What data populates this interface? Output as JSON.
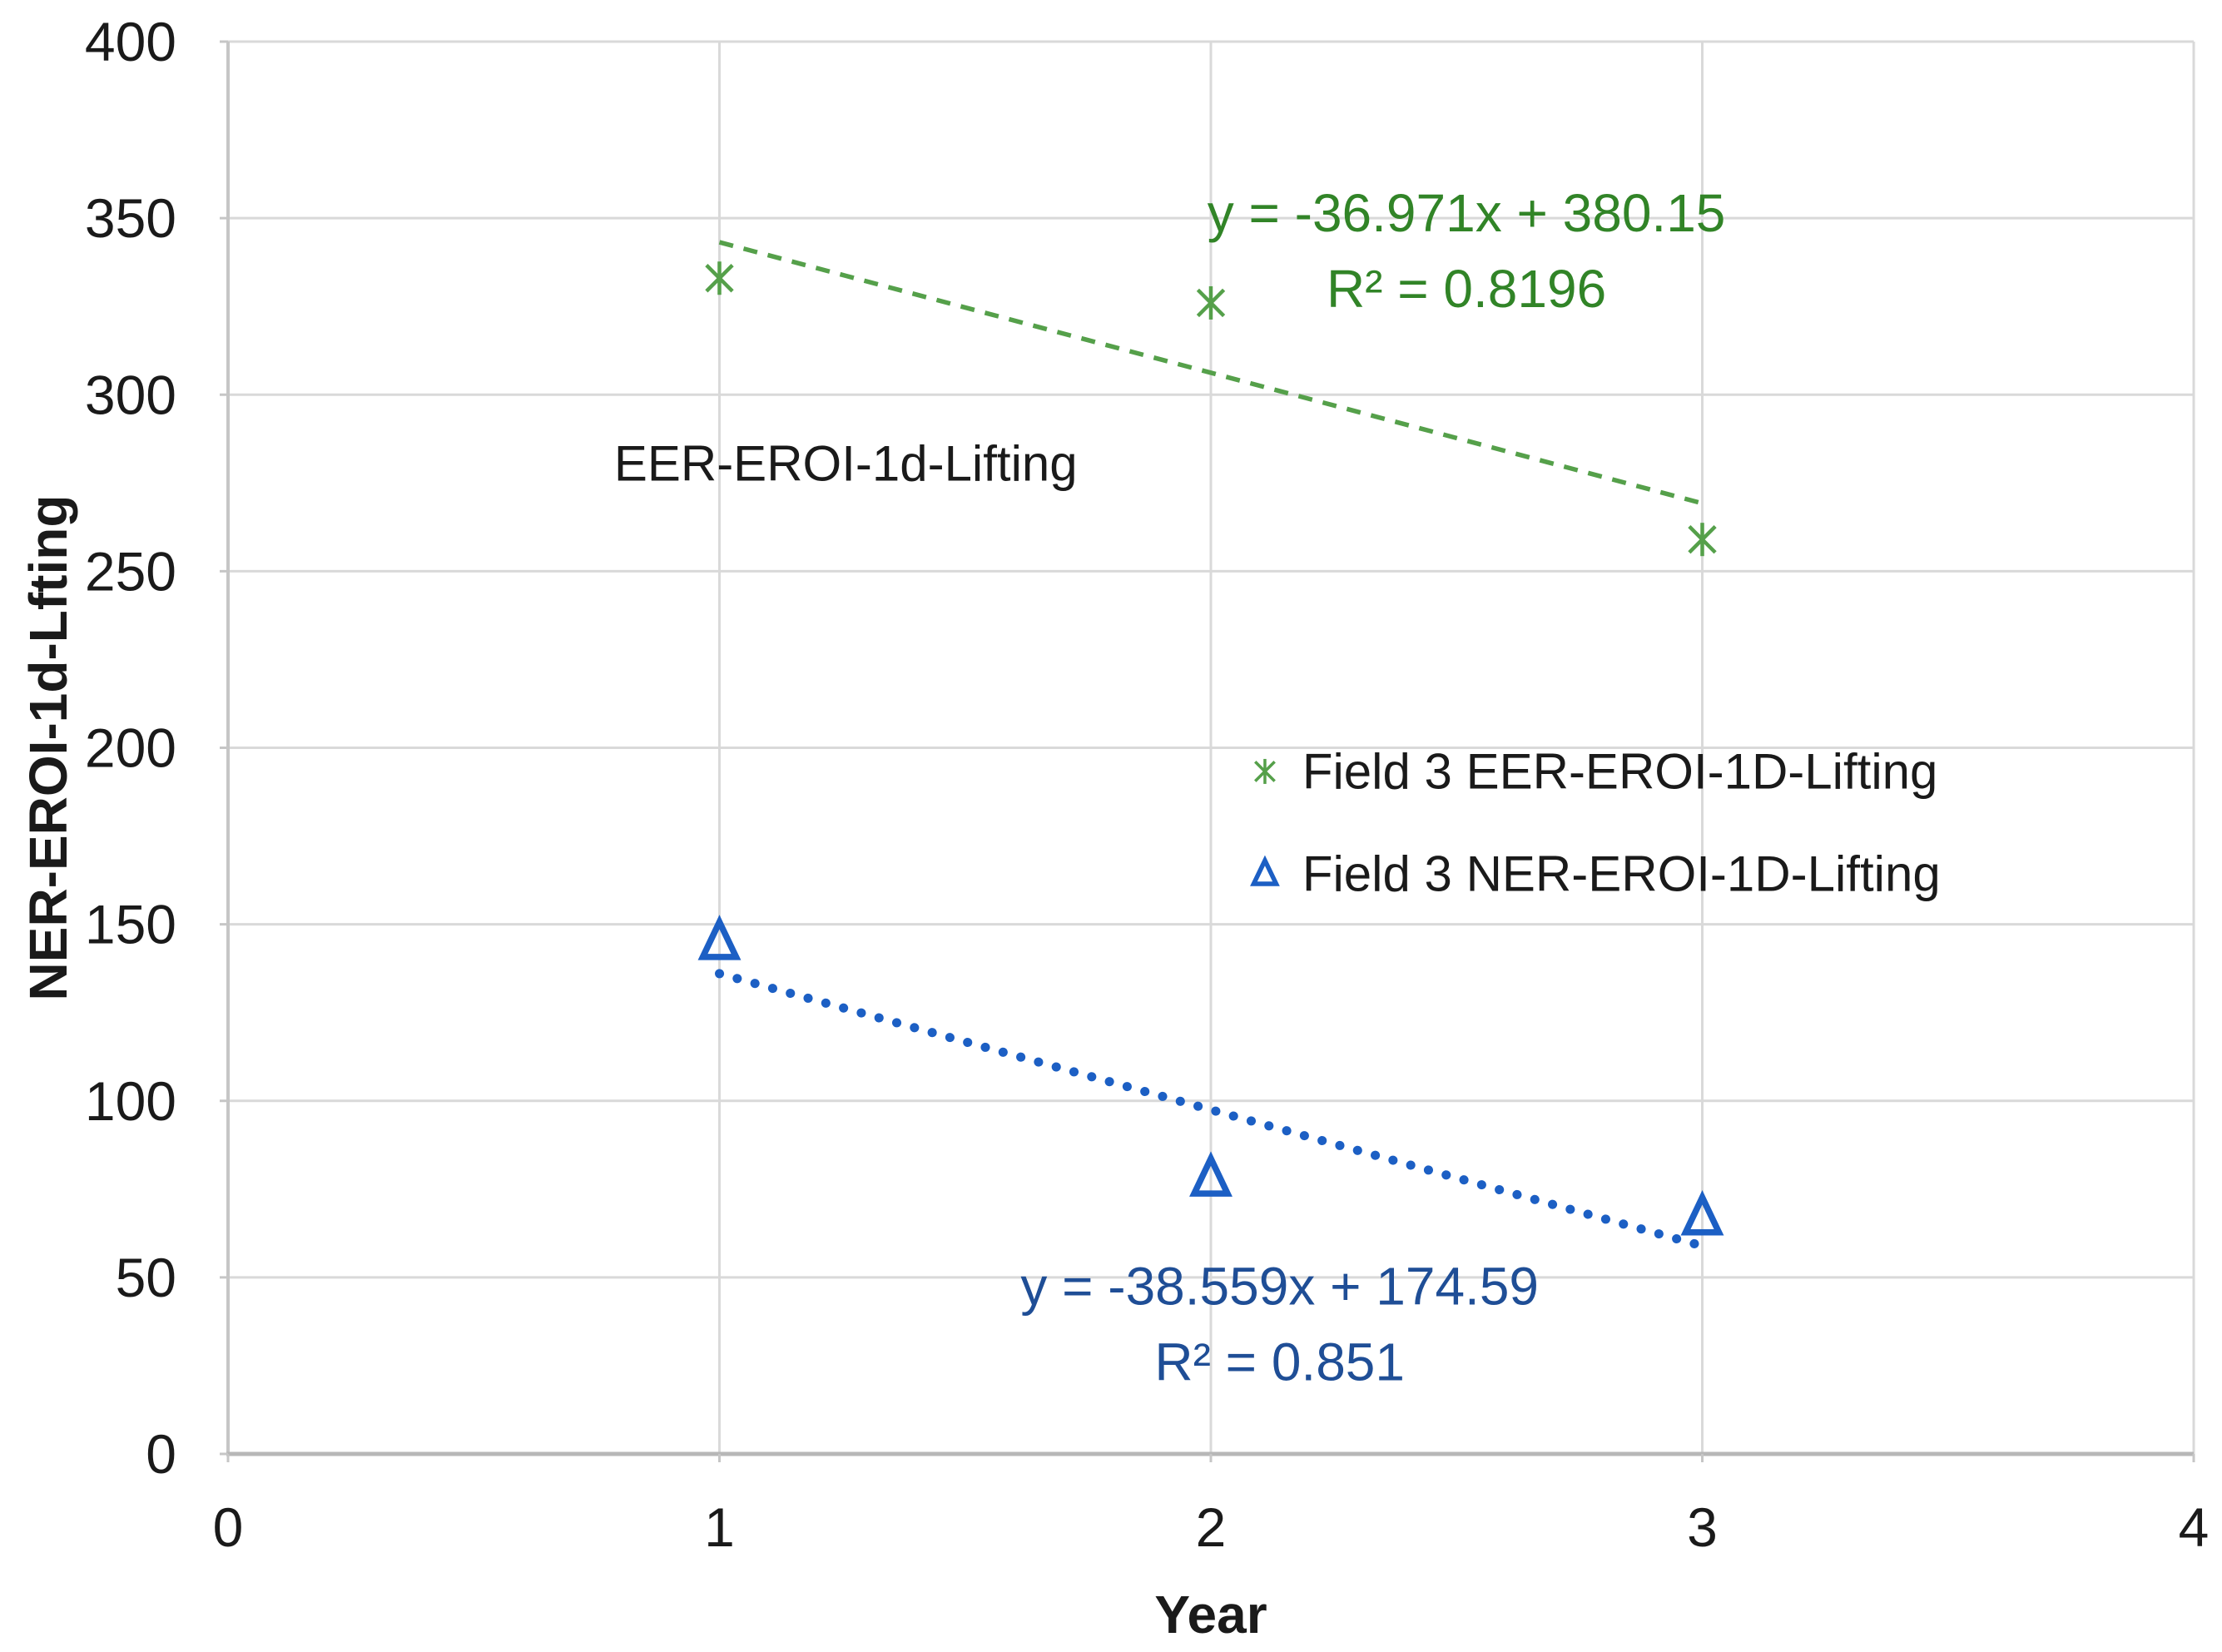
{
  "chart_data": {
    "type": "scatter",
    "title": "",
    "xlabel": "Year",
    "ylabel": "NER-EROI-1d-Lfting",
    "xlim": [
      0,
      4
    ],
    "ylim": [
      0,
      400
    ],
    "x_ticks": [
      0,
      1,
      2,
      3,
      4
    ],
    "y_ticks": [
      0,
      50,
      100,
      150,
      200,
      250,
      300,
      350,
      400
    ],
    "grid": true,
    "legend_position": "middle-right",
    "x": [
      1,
      2,
      3
    ],
    "series": [
      {
        "name": "Field 3 EER-EROI-1D-Lifting",
        "marker": "asterisk",
        "color": "#55A04A",
        "values": [
          333,
          326,
          259
        ],
        "trendline": {
          "style": "dashed",
          "slope": -36.971,
          "intercept": 380.15,
          "r2": 0.8196,
          "span": [
            1,
            3
          ],
          "equation_text": "y = -36.971x + 380.15",
          "r2_text": "R² = 0.8196",
          "text_color": "#318427",
          "label_x": 2.52,
          "label_y": 351.5,
          "label_y2": 330.0
        }
      },
      {
        "name": "Field 3 NER-EROI-1D-Lifting",
        "marker": "triangle-open",
        "color": "#1C5FC4",
        "values": [
          145,
          78,
          67
        ],
        "trendline": {
          "style": "dotted",
          "slope": -38.559,
          "intercept": 174.59,
          "r2": 0.851,
          "span": [
            1,
            3
          ],
          "equation_text": "y = -38.559x + 174.59",
          "r2_text": "R² = 0.851",
          "text_color": "#1F4E96",
          "label_x": 2.14,
          "label_y": 47.5,
          "label_y2": 26.0
        }
      }
    ],
    "annotations": [
      {
        "text": "EER-EROI-1d-Lifting",
        "x": 1.257,
        "y": 280.5,
        "color": "#1A1A1A"
      }
    ],
    "legend": {
      "marker_x": 2.11,
      "text_x": 2.186,
      "row_y": [
        193.3,
        164.3
      ],
      "items": [
        {
          "label": "Field 3 EER-EROI-1D-Lifting",
          "marker": "asterisk",
          "color": "#55A04A"
        },
        {
          "label": "Field 3 NER-EROI-1D-Lifting",
          "marker": "triangle-open",
          "color": "#1C5FC4"
        }
      ]
    }
  },
  "colors": {
    "background": "#FFFFFF",
    "gridline": "#D9D9D9",
    "axis_line_bottom": "#B7B7B7",
    "axis_line_left": "#C6C6C6",
    "tick_mark": "#C6C6C6",
    "text": "#1A1A1A"
  }
}
